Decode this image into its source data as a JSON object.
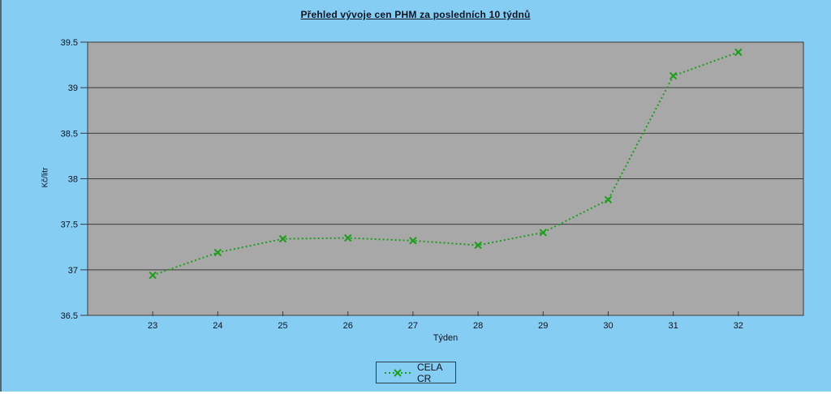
{
  "window": {
    "bg_color": "#86cdf3",
    "left_border_color": "#51646f",
    "bottom_strip_color": "#ffffff"
  },
  "chart_data": {
    "type": "line",
    "title": "Přehled vývoje cen PHM za posledních 10 týdnů",
    "xlabel": "Týden",
    "ylabel": "Kč/litr",
    "categories": [
      "23",
      "24",
      "25",
      "26",
      "27",
      "28",
      "29",
      "30",
      "31",
      "32"
    ],
    "series": [
      {
        "name": "CELA CR",
        "values": [
          36.94,
          37.19,
          37.34,
          37.35,
          37.32,
          37.27,
          37.41,
          37.77,
          39.13,
          39.39
        ],
        "color": "#1c9e1c",
        "line_style": "dotted",
        "marker": "x"
      }
    ],
    "ylim": [
      36.5,
      39.5
    ],
    "ytick_step": 0.5,
    "yticks": [
      "36.5",
      "37",
      "37.5",
      "38",
      "38.5",
      "39",
      "39.5"
    ],
    "grid": "horizontal",
    "legend_position": "bottom-center",
    "plot_bg_color": "#a8a8a8",
    "axis_color": "#3a3a3a",
    "text_color": "#0e1220"
  }
}
